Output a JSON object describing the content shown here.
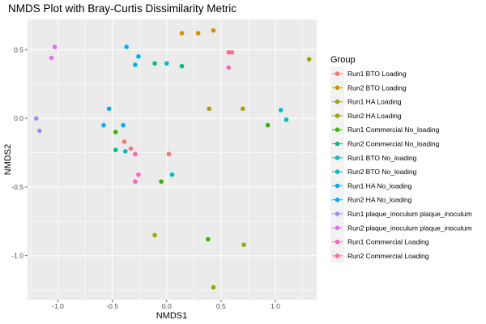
{
  "chart_data": {
    "type": "scatter",
    "title": "NMDS Plot with Bray-Curtis Dissimilarity Metric",
    "xlabel": "NMDS1",
    "ylabel": "NMDS2",
    "xlim": [
      -1.28,
      1.38
    ],
    "ylim": [
      -1.32,
      0.72
    ],
    "x_ticks": [
      -1.0,
      -0.5,
      0.0,
      0.5,
      1.0
    ],
    "x_tick_labels": [
      "-1.0",
      "-0.5",
      "0.0",
      "0.5",
      "1.0"
    ],
    "y_ticks": [
      0.5,
      0.0,
      -0.5,
      -1.0
    ],
    "y_tick_labels": [
      "0.5",
      "0.0",
      "-0.5",
      "-1.0"
    ],
    "grid": true,
    "legend_title": "Group",
    "legend_position": "right",
    "series": [
      {
        "name": "Run1 BTO Loading",
        "color": "#F8766D",
        "points": [
          [
            -0.39,
            -0.17
          ],
          [
            -0.33,
            -0.22
          ],
          [
            0.02,
            -0.26
          ]
        ]
      },
      {
        "name": "Run2 BTO Loading",
        "color": "#D89000",
        "points": [
          [
            0.14,
            0.62
          ],
          [
            0.29,
            0.62
          ],
          [
            0.43,
            0.64
          ]
        ]
      },
      {
        "name": "Run1 HA Loading",
        "color": "#A3A500",
        "points": [
          [
            -0.11,
            -0.85
          ],
          [
            0.71,
            -0.92
          ],
          [
            0.43,
            -1.23
          ]
        ]
      },
      {
        "name": "Run2 HA Loading",
        "color": "#A3A500",
        "points": [
          [
            0.39,
            0.07
          ],
          [
            0.7,
            0.07
          ],
          [
            1.31,
            0.43
          ]
        ]
      },
      {
        "name": "Run1 Commercial No_loading",
        "color": "#39B600",
        "points": [
          [
            -0.47,
            -0.1
          ],
          [
            -0.05,
            -0.46
          ],
          [
            0.38,
            -0.88
          ],
          [
            0.93,
            -0.05
          ]
        ]
      },
      {
        "name": "Run2 Commercial No_loading",
        "color": "#00BF7D",
        "points": [
          [
            -0.47,
            -0.23
          ],
          [
            -0.11,
            0.4
          ],
          [
            0.14,
            0.38
          ]
        ]
      },
      {
        "name": "Run1 BTO No_loading",
        "color": "#00BFC4",
        "points": [
          [
            -0.38,
            -0.24
          ],
          [
            0.05,
            -0.41
          ],
          [
            1.1,
            -0.01
          ]
        ]
      },
      {
        "name": "Run2 BTO No_loading",
        "color": "#00BFC4",
        "points": [
          [
            1.05,
            0.06
          ],
          [
            0.0,
            0.4
          ]
        ]
      },
      {
        "name": "Run1 HA No_loading",
        "color": "#00B0F6",
        "points": [
          [
            -0.58,
            -0.05
          ],
          [
            -0.53,
            0.07
          ],
          [
            -0.4,
            -0.05
          ],
          [
            -0.37,
            0.52
          ]
        ]
      },
      {
        "name": "Run2 HA No_loading",
        "color": "#00B0F6",
        "points": [
          [
            -0.29,
            0.39
          ],
          [
            -0.26,
            0.45
          ]
        ]
      },
      {
        "name": "Run1 plaque_inoculum plaque_inoculum",
        "color": "#9590FF",
        "points": [
          [
            -1.2,
            0.0
          ],
          [
            -1.17,
            -0.09
          ]
        ]
      },
      {
        "name": "Run2 plaque_inoculum plaque_inoculum",
        "color": "#E76BF3",
        "points": [
          [
            -1.03,
            0.52
          ],
          [
            -1.06,
            0.44
          ]
        ]
      },
      {
        "name": "Run1 Commercial Loading",
        "color": "#FF62BC",
        "points": [
          [
            -0.29,
            -0.26
          ],
          [
            -0.26,
            -0.41
          ],
          [
            -0.29,
            -0.46
          ],
          [
            0.57,
            0.37
          ]
        ]
      },
      {
        "name": "Run2 Commercial Loading",
        "color": "#FF6C91",
        "points": [
          [
            0.57,
            0.48
          ],
          [
            0.6,
            0.48
          ]
        ]
      }
    ]
  }
}
